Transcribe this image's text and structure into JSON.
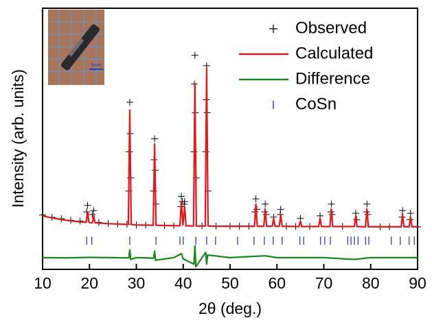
{
  "chart_data": {
    "type": "line",
    "xlabel": "2θ (deg.)",
    "ylabel": "Intensity (arb. units)",
    "xlim": [
      10,
      90
    ],
    "xticks": [
      10,
      20,
      30,
      40,
      50,
      60,
      70,
      80,
      90
    ],
    "ylim": [
      0,
      100
    ],
    "legend": "upper right",
    "inset_label": "1mm",
    "series": [
      {
        "name": "Observed",
        "style": "marker-plus",
        "color": "#000000",
        "x": [
          10,
          12,
          14,
          16,
          18,
          19.4,
          19.6,
          20.6,
          20.9,
          22,
          24,
          26,
          28,
          28.4,
          28.5,
          28.6,
          28.7,
          28.8,
          30,
          32,
          33.7,
          33.8,
          33.9,
          34.0,
          34.2,
          36,
          38,
          39.5,
          39.6,
          39.8,
          40.2,
          40.3,
          42.3,
          42.4,
          42.5,
          42.6,
          42.8,
          44,
          44.8,
          44.9,
          45.0,
          45.1,
          45.3,
          47,
          50,
          52,
          54,
          55.3,
          55.5,
          55.7,
          57.4,
          57.5,
          57.7,
          59.3,
          60.7,
          60.8,
          62,
          64,
          65.0,
          67,
          69.2,
          71.5,
          71.6,
          71.8,
          74,
          76.8,
          77,
          79.1,
          79.2,
          79.4,
          82,
          84,
          86.7,
          86.8,
          88.4,
          88.5,
          90
        ],
        "values": [
          20.8,
          19.9,
          19.4,
          18.8,
          18.5,
          22,
          24.5,
          21,
          22.5,
          18,
          17.6,
          17.4,
          17.3,
          30,
          45,
          64,
          52,
          35,
          17,
          16.9,
          30,
          42,
          50,
          38,
          25,
          16.8,
          16.7,
          24,
          28,
          26,
          25,
          26,
          45,
          71,
          82,
          60,
          35,
          16.6,
          45,
          65,
          78,
          60,
          30,
          16.6,
          16.5,
          16.5,
          16.5,
          22,
          27,
          23,
          22,
          25,
          21,
          20,
          21,
          23,
          16.5,
          16.4,
          19.5,
          16.4,
          20.5,
          22,
          25,
          21,
          16.4,
          21.5,
          19,
          22,
          25,
          21,
          16.3,
          16.3,
          20,
          22.5,
          19,
          21.5,
          16.3
        ]
      },
      {
        "name": "Calculated",
        "style": "line",
        "color": "#e8141b",
        "x": [
          10,
          12,
          14,
          16,
          18,
          19.3,
          19.6,
          19.9,
          20.6,
          20.9,
          21.2,
          24,
          28.3,
          28.6,
          28.9,
          30,
          33.6,
          33.9,
          34.2,
          36,
          39.3,
          39.6,
          39.95,
          40.3,
          40.6,
          42.2,
          42.5,
          42.8,
          44.7,
          45.0,
          45.3,
          48,
          55.2,
          55.5,
          55.8,
          57.2,
          57.5,
          57.8,
          59.0,
          59.3,
          59.6,
          60.5,
          60.8,
          61.1,
          64.7,
          65.0,
          65.3,
          68.9,
          69.2,
          69.5,
          71.3,
          71.6,
          71.9,
          76.5,
          76.8,
          77.1,
          78.9,
          79.2,
          79.5,
          86.5,
          86.8,
          87.1,
          88.2,
          88.5,
          88.8,
          90
        ],
        "values": [
          20.5,
          19.7,
          19.1,
          18.6,
          18.2,
          18,
          22,
          18,
          17.8,
          20.5,
          17.8,
          17.5,
          17.2,
          61,
          17.2,
          17,
          16.9,
          48,
          16.9,
          16.8,
          16.7,
          26,
          17,
          24,
          16.7,
          16.6,
          71,
          16.6,
          16.6,
          77,
          16.6,
          16.5,
          16.5,
          25,
          16.5,
          16.5,
          23,
          16.5,
          16.5,
          19.5,
          16.5,
          16.5,
          21,
          16.5,
          16.4,
          18.5,
          16.4,
          16.4,
          19.5,
          16.4,
          16.4,
          23,
          16.4,
          16.4,
          20.5,
          16.4,
          16.3,
          23,
          16.3,
          16.3,
          21,
          16.3,
          16.3,
          20,
          16.3,
          16.3
        ]
      },
      {
        "name": "Difference",
        "style": "line",
        "color": "#138a13",
        "x": [
          10,
          15,
          20,
          25,
          28.4,
          28.6,
          28.8,
          30,
          33.7,
          33.9,
          34.1,
          38,
          39.6,
          40,
          42.3,
          42.5,
          42.7,
          44.8,
          45,
          45.2,
          50,
          57.5,
          60,
          70,
          76.5,
          80,
          90
        ],
        "values": [
          4.5,
          4.4,
          4.6,
          4.5,
          4.4,
          7.5,
          3.8,
          4.5,
          4.3,
          7,
          3.5,
          4.5,
          6,
          4,
          2,
          9,
          1,
          6.5,
          2,
          5.5,
          4.5,
          5.2,
          4.5,
          4.5,
          3.8,
          4.5,
          4.5
        ]
      },
      {
        "name": "CoSn",
        "style": "tick",
        "color": "#3b3bb0",
        "x": [
          19.4,
          20.5,
          28.6,
          34.2,
          39.3,
          40.0,
          42.7,
          45.0,
          46.9,
          51.6,
          55.1,
          57.3,
          59.2,
          61.1,
          64.9,
          65.7,
          69.3,
          70.2,
          71.4,
          75.1,
          75.8,
          76.5,
          77.3,
          78.9,
          79.6,
          84.4,
          86.3,
          88.2,
          89.3
        ],
        "values": [
          11,
          11,
          11,
          11,
          11,
          11,
          11,
          11,
          11,
          11,
          11,
          11,
          11,
          11,
          11,
          11,
          11,
          11,
          11,
          11,
          11,
          11,
          11,
          11,
          11,
          11,
          11,
          11,
          11
        ]
      }
    ]
  }
}
